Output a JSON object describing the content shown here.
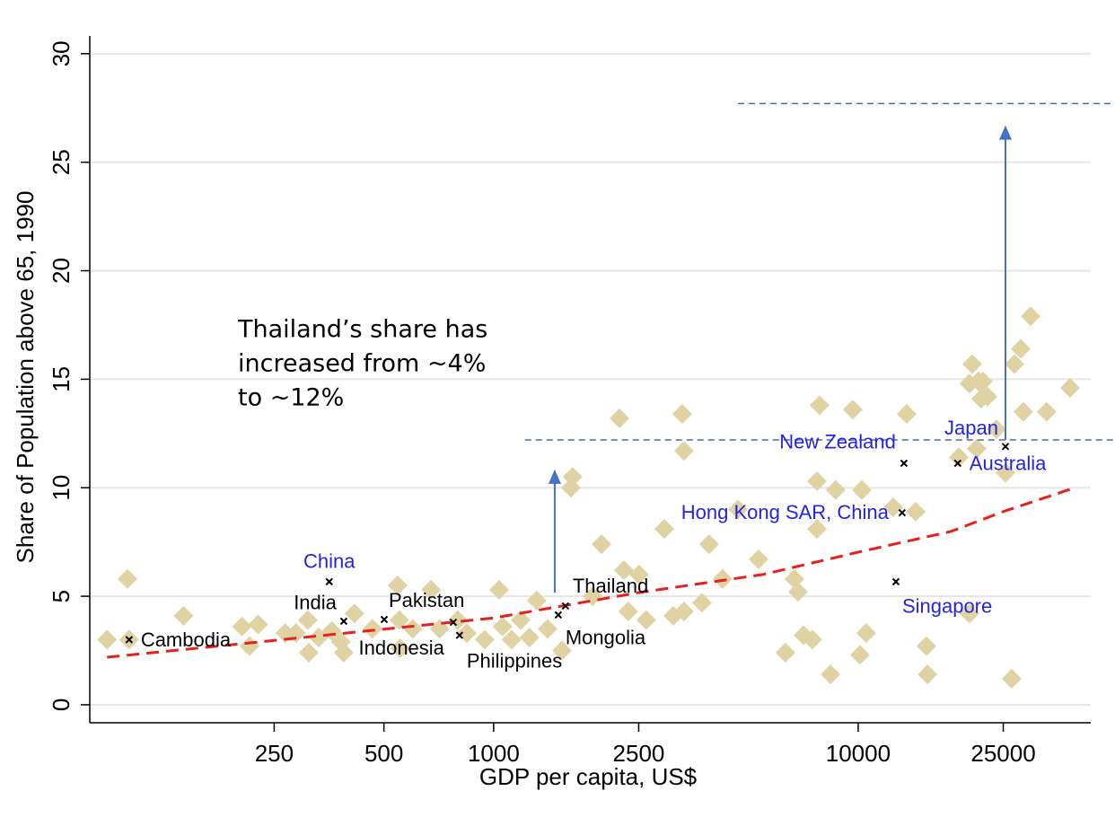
{
  "chart_data": {
    "type": "scatter",
    "xlabel": "GDP per capita, US$",
    "ylabel": "Share of Population above 65, 1990",
    "log_x": true,
    "grid": true,
    "xlim": [
      78,
      43450
    ],
    "ylim": [
      -0.83,
      30.82
    ],
    "xticks": [
      250,
      500,
      1000,
      2500,
      10000,
      25000
    ],
    "yticks": [
      0,
      5,
      10,
      15,
      20,
      25,
      30
    ],
    "color": "#dfd3a4",
    "x": [
      87,
      99,
      100,
      141,
      204,
      214,
      226,
      268,
      287,
      311,
      309,
      331,
      360,
      381,
      388,
      415,
      465,
      545,
      551,
      554,
      600,
      673,
      711,
      797,
      844,
      945,
      1035,
      1058,
      1120,
      1186,
      1254,
      1313,
      1406,
      1539,
      1647,
      1629,
      1866,
      1977,
      2213,
      2276,
      2340,
      2505,
      2622,
      2938,
      3111,
      3290,
      3327,
      3327,
      3726,
      3899,
      4246,
      4677,
      5329,
      6316,
      6683,
      6839,
      7079,
      7484,
      7834,
      7709,
      7709,
      8392,
      8676,
      9663,
      10115,
      10233,
      10520,
      12474,
      13583,
      14380,
      15385,
      15488,
      18880,
      20184,
      20550,
      21380,
      21730,
      21980,
      22630,
      21130,
      23930,
      25350,
      26830,
      27920,
      28380,
      29720,
      32890,
      38110,
      26360,
      20184
    ],
    "y": [
      3.0,
      5.8,
      3.0,
      4.1,
      3.6,
      2.7,
      3.7,
      3.3,
      3.3,
      2.4,
      3.9,
      3.1,
      3.4,
      2.9,
      2.4,
      4.2,
      3.5,
      5.5,
      3.9,
      2.6,
      3.5,
      5.3,
      3.5,
      3.9,
      3.3,
      3.0,
      5.3,
      3.6,
      3.0,
      3.9,
      3.1,
      4.8,
      3.5,
      2.5,
      10.5,
      10.0,
      5.0,
      7.4,
      13.2,
      6.2,
      4.3,
      6.0,
      3.9,
      8.1,
      4.1,
      13.4,
      11.7,
      4.3,
      4.7,
      7.4,
      5.8,
      9.0,
      6.7,
      2.4,
      5.8,
      5.2,
      3.2,
      3.0,
      13.8,
      10.3,
      8.1,
      1.4,
      9.9,
      13.6,
      2.3,
      9.9,
      3.3,
      9.1,
      13.4,
      8.9,
      2.7,
      1.4,
      11.4,
      14.8,
      15.7,
      14.9,
      14.1,
      14.9,
      14.2,
      11.8,
      12.7,
      10.7,
      15.7,
      16.4,
      13.5,
      17.9,
      13.5,
      14.6,
      1.2,
      4.2
    ],
    "labeled_points": {
      "names": [
        "Cambodia",
        "China",
        "India",
        "Pakistan",
        "Indonesia",
        "Philippines",
        "Mongolia",
        "Thailand",
        "Japan",
        "Australia",
        "New Zealand",
        "Hong Kong SAR, China",
        "Singapore"
      ],
      "x": [
        100,
        354,
        388,
        501,
        775,
        806,
        1504,
        1574,
        25350,
        18750,
        13350,
        13200,
        12690
      ],
      "y": [
        3.0,
        5.67,
        3.85,
        3.93,
        3.8,
        3.2,
        4.14,
        4.55,
        11.9,
        11.13,
        11.13,
        8.85,
        5.67
      ],
      "label_colors": [
        "#000000",
        "#2323e6",
        "#000000",
        "#000000",
        "#000000",
        "#000000",
        "#000000",
        "#000000",
        "#2323e6",
        "#2323e6",
        "#2323e6",
        "#2323e6",
        "#2323e6"
      ]
    },
    "fit_line": {
      "color": "#e8201c",
      "x": [
        87,
        242,
        1000,
        2500,
        5470,
        10000,
        18000,
        25000,
        38800
      ],
      "y": [
        2.19,
        2.94,
        4.0,
        5.17,
        6.0,
        7.03,
        7.99,
        8.9,
        9.97
      ]
    },
    "arrows": {
      "color": "#4472c4",
      "x": [
        1471,
        25350
      ],
      "from": [
        5.17,
        12.2
      ],
      "to": [
        10.84,
        26.7
      ]
    },
    "reference_lines": {
      "color": "#41729c",
      "y": [
        12.2,
        27.7
      ],
      "x_start": [
        1219,
        4677
      ]
    },
    "annotation": [
      "Thailand’s share has",
      "increased from ~4%",
      "to ~12%"
    ]
  }
}
